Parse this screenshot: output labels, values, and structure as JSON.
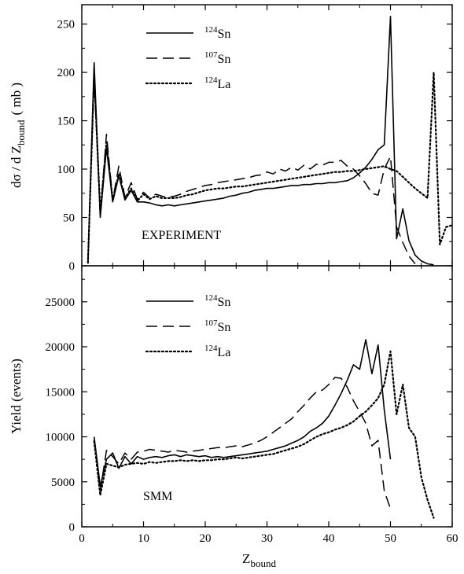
{
  "chart_data": [
    {
      "type": "line",
      "panel_label": "EXPERIMENT",
      "ylabel_parts": {
        "main": "dσ / d Z",
        "sub": "bound",
        "unit": "( mb )"
      },
      "xlim": [
        0,
        60
      ],
      "ylim": [
        0,
        270
      ],
      "xticks": [
        0,
        10,
        20,
        30,
        40,
        50,
        60
      ],
      "yticks": [
        0,
        50,
        100,
        150,
        200,
        250
      ],
      "legend_position": "top-left",
      "series": [
        {
          "name": "124Sn",
          "mass": "124",
          "element": "Sn",
          "style": "solid",
          "x": [
            1,
            2,
            3,
            4,
            5,
            6,
            7,
            8,
            9,
            10,
            11,
            12,
            13,
            14,
            15,
            16,
            17,
            18,
            19,
            20,
            21,
            22,
            23,
            24,
            25,
            26,
            27,
            28,
            29,
            30,
            31,
            32,
            33,
            34,
            35,
            36,
            37,
            38,
            39,
            40,
            41,
            42,
            43,
            44,
            45,
            46,
            47,
            48,
            49,
            50,
            51,
            52,
            53,
            54,
            55,
            56,
            57
          ],
          "y": [
            3,
            210,
            50,
            122,
            66,
            93,
            68,
            78,
            66,
            66,
            65,
            63,
            62,
            63,
            62,
            63,
            64,
            65,
            66,
            67,
            68,
            69,
            70,
            72,
            73,
            75,
            76,
            78,
            79,
            80,
            80,
            81,
            82,
            83,
            83,
            84,
            84,
            85,
            85,
            86,
            86,
            87,
            88,
            91,
            96,
            102,
            110,
            120,
            125,
            258,
            28,
            59,
            26,
            11,
            5,
            2,
            1
          ]
        },
        {
          "name": "107Sn",
          "mass": "107",
          "element": "Sn",
          "style": "dashed",
          "x": [
            1,
            2,
            3,
            4,
            5,
            6,
            7,
            8,
            9,
            10,
            11,
            12,
            13,
            14,
            15,
            16,
            17,
            18,
            19,
            20,
            21,
            22,
            23,
            24,
            25,
            26,
            27,
            28,
            29,
            30,
            31,
            32,
            33,
            34,
            35,
            36,
            37,
            38,
            39,
            40,
            41,
            42,
            43,
            44,
            45,
            46,
            47,
            48,
            49,
            50,
            51,
            52,
            53,
            54
          ],
          "y": [
            3,
            195,
            52,
            136,
            68,
            103,
            71,
            86,
            69,
            76,
            70,
            74,
            72,
            71,
            72,
            74,
            77,
            79,
            81,
            83,
            84,
            86,
            87,
            88,
            89,
            90,
            91,
            93,
            94,
            97,
            95,
            100,
            98,
            102,
            99,
            104,
            100,
            105,
            104,
            107,
            107,
            109,
            103,
            100,
            93,
            85,
            75,
            73,
            100,
            113,
            40,
            24,
            10,
            2
          ]
        },
        {
          "name": "124La",
          "mass": "124",
          "element": "La",
          "style": "dotted",
          "x": [
            1,
            2,
            3,
            4,
            5,
            6,
            7,
            8,
            9,
            10,
            11,
            12,
            13,
            14,
            15,
            16,
            17,
            18,
            19,
            20,
            21,
            22,
            23,
            24,
            25,
            26,
            27,
            28,
            29,
            30,
            31,
            32,
            33,
            34,
            35,
            36,
            37,
            38,
            39,
            40,
            41,
            42,
            43,
            44,
            45,
            46,
            47,
            48,
            49,
            50,
            51,
            52,
            53,
            54,
            55,
            56,
            57,
            58,
            59,
            60
          ],
          "y": [
            3,
            198,
            55,
            128,
            68,
            95,
            70,
            80,
            67,
            74,
            69,
            72,
            70,
            70,
            70,
            71,
            73,
            74,
            76,
            78,
            79,
            80,
            80,
            81,
            82,
            82,
            83,
            84,
            85,
            86,
            87,
            88,
            89,
            90,
            91,
            92,
            93,
            94,
            95,
            96,
            97,
            97,
            98,
            98,
            99,
            100,
            101,
            102,
            103,
            100,
            98,
            92,
            86,
            80,
            75,
            70,
            200,
            22,
            40,
            42
          ]
        }
      ]
    },
    {
      "type": "line",
      "panel_label": "SMM",
      "ylabel": "Yield (events)",
      "xlabel_parts": {
        "main": "Z",
        "sub": "bound"
      },
      "xlim": [
        0,
        60
      ],
      "ylim": [
        0,
        29000
      ],
      "xticks": [
        0,
        10,
        20,
        30,
        40,
        50,
        60
      ],
      "yticks": [
        0,
        5000,
        10000,
        15000,
        20000,
        25000
      ],
      "legend_position": "top-left",
      "series": [
        {
          "name": "124Sn",
          "mass": "124",
          "element": "Sn",
          "style": "solid",
          "x": [
            2,
            3,
            4,
            5,
            6,
            7,
            8,
            9,
            10,
            11,
            12,
            13,
            14,
            15,
            16,
            17,
            18,
            19,
            20,
            21,
            22,
            23,
            24,
            25,
            26,
            27,
            28,
            29,
            30,
            31,
            32,
            33,
            34,
            35,
            36,
            37,
            38,
            39,
            40,
            41,
            42,
            43,
            44,
            45,
            46,
            47,
            48,
            49,
            50
          ],
          "y": [
            10000,
            4500,
            7500,
            8200,
            6500,
            7800,
            7000,
            7800,
            7500,
            7700,
            7800,
            7700,
            7900,
            8000,
            7800,
            8000,
            7900,
            7800,
            7900,
            7700,
            7800,
            7700,
            7800,
            7900,
            8000,
            8100,
            8200,
            8300,
            8400,
            8600,
            8800,
            9000,
            9300,
            9600,
            10000,
            10600,
            11000,
            11500,
            12300,
            13500,
            14800,
            16300,
            18000,
            17500,
            20800,
            17000,
            20200,
            13000,
            7500
          ]
        },
        {
          "name": "107Sn",
          "mass": "107",
          "element": "Sn",
          "style": "dashed",
          "x": [
            2,
            3,
            4,
            5,
            6,
            7,
            8,
            9,
            10,
            11,
            12,
            13,
            14,
            15,
            16,
            17,
            18,
            19,
            20,
            21,
            22,
            23,
            24,
            25,
            26,
            27,
            28,
            29,
            30,
            31,
            32,
            33,
            34,
            35,
            36,
            37,
            38,
            39,
            40,
            41,
            42,
            43,
            44,
            45,
            46,
            47,
            48,
            49,
            50
          ],
          "y": [
            9700,
            4000,
            8500,
            7800,
            7000,
            8200,
            7500,
            8300,
            8400,
            8600,
            8500,
            8400,
            8300,
            8500,
            8400,
            8300,
            8400,
            8500,
            8600,
            8700,
            8800,
            8800,
            8900,
            9000,
            8900,
            9100,
            9300,
            9600,
            10000,
            10500,
            11000,
            11500,
            12000,
            12800,
            13500,
            14300,
            15000,
            15200,
            15800,
            16600,
            16500,
            15500,
            14000,
            12800,
            11500,
            9000,
            9600,
            4000,
            2000
          ]
        },
        {
          "name": "124La",
          "mass": "124",
          "element": "La",
          "style": "dotted",
          "x": [
            2,
            3,
            4,
            5,
            6,
            7,
            8,
            9,
            10,
            11,
            12,
            13,
            14,
            15,
            16,
            17,
            18,
            19,
            20,
            21,
            22,
            23,
            24,
            25,
            26,
            27,
            28,
            29,
            30,
            31,
            32,
            33,
            34,
            35,
            36,
            37,
            38,
            39,
            40,
            41,
            42,
            43,
            44,
            45,
            46,
            47,
            48,
            49,
            50,
            51,
            52,
            53,
            54,
            55,
            56,
            57
          ],
          "y": [
            9500,
            3500,
            7000,
            6800,
            6600,
            6900,
            7000,
            7100,
            7000,
            7200,
            7100,
            7200,
            7300,
            7300,
            7400,
            7300,
            7400,
            7300,
            7400,
            7400,
            7500,
            7500,
            7600,
            7700,
            7600,
            7700,
            7800,
            7900,
            8000,
            8100,
            8300,
            8500,
            8700,
            8900,
            9200,
            9600,
            10000,
            10300,
            10500,
            10800,
            11000,
            11300,
            11700,
            12300,
            12800,
            13500,
            14300,
            15800,
            19500,
            12500,
            15800,
            11000,
            10000,
            5500,
            3000,
            1000
          ]
        }
      ]
    }
  ]
}
